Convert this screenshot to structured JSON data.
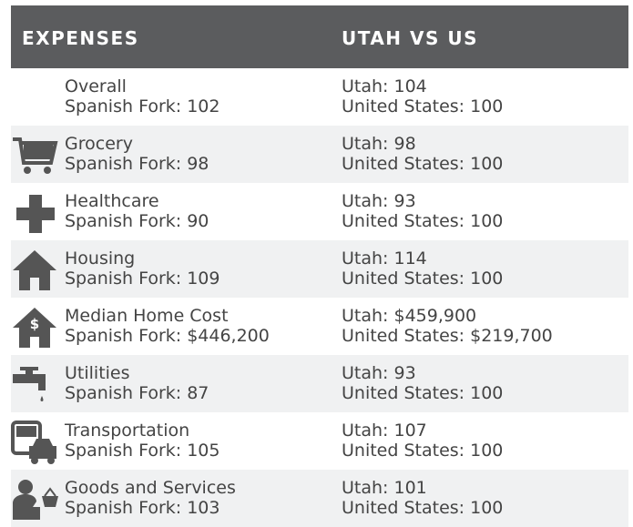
{
  "header": {
    "col1": "EXPENSES",
    "col2": "UTAH VS US"
  },
  "rows": [
    {
      "name": "Overall",
      "local": "Spanish Fork: 102",
      "state": "Utah: 104",
      "us": "United States: 100"
    },
    {
      "name": "Grocery",
      "local": "Spanish Fork: 98",
      "state": "Utah: 98",
      "us": "United States: 100"
    },
    {
      "name": "Healthcare",
      "local": "Spanish Fork: 90",
      "state": "Utah: 93",
      "us": "United States: 100"
    },
    {
      "name": "Housing",
      "local": "Spanish Fork: 109",
      "state": "Utah: 114",
      "us": "United States: 100"
    },
    {
      "name": "Median Home Cost",
      "local": "Spanish Fork: $446,200",
      "state": "Utah: $459,900",
      "us": "United States: $219,700"
    },
    {
      "name": "Utilities",
      "local": "Spanish Fork: 87",
      "state": "Utah: 93",
      "us": "United States: 100"
    },
    {
      "name": "Transportation",
      "local": "Spanish Fork: 105",
      "state": "Utah: 107",
      "us": "United States: 100"
    },
    {
      "name": "Goods and Services",
      "local": "Spanish Fork: 103",
      "state": "Utah: 101",
      "us": "United States: 100"
    }
  ]
}
